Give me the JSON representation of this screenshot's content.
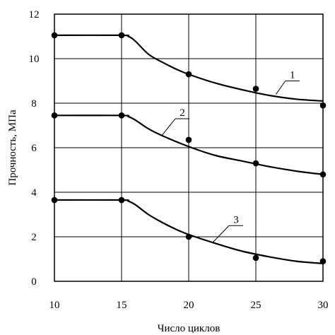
{
  "chart_data": {
    "type": "line",
    "title": "",
    "xlabel": "Число циклов",
    "ylabel": "Прочность, МПа",
    "xlim": [
      10,
      30
    ],
    "ylim": [
      0,
      12
    ],
    "x_ticks": [
      "10",
      "15",
      "20",
      "25",
      "30"
    ],
    "y_ticks": [
      "0",
      "2",
      "4",
      "6",
      "8",
      "10",
      "12"
    ],
    "grid": true,
    "series": [
      {
        "name": "1",
        "points": [
          {
            "x": 10,
            "y": 11.05
          },
          {
            "x": 15,
            "y": 11.05
          },
          {
            "x": 20,
            "y": 9.3
          },
          {
            "x": 25,
            "y": 8.65
          },
          {
            "x": 30,
            "y": 7.9
          }
        ],
        "curve": [
          {
            "x": 10,
            "y": 11.05
          },
          {
            "x": 15,
            "y": 11.05
          },
          {
            "x": 15.5,
            "y": 11.0
          },
          {
            "x": 16,
            "y": 10.8
          },
          {
            "x": 17,
            "y": 10.2
          },
          {
            "x": 18,
            "y": 9.85
          },
          {
            "x": 19,
            "y": 9.55
          },
          {
            "x": 20,
            "y": 9.3
          },
          {
            "x": 22,
            "y": 8.9
          },
          {
            "x": 24,
            "y": 8.6
          },
          {
            "x": 26,
            "y": 8.35
          },
          {
            "x": 28,
            "y": 8.18
          },
          {
            "x": 30,
            "y": 8.1
          }
        ]
      },
      {
        "name": "2",
        "points": [
          {
            "x": 10,
            "y": 7.45
          },
          {
            "x": 15,
            "y": 7.45
          },
          {
            "x": 20,
            "y": 6.35
          },
          {
            "x": 25,
            "y": 5.3
          },
          {
            "x": 30,
            "y": 4.8
          }
        ],
        "curve": [
          {
            "x": 10,
            "y": 7.45
          },
          {
            "x": 15,
            "y": 7.45
          },
          {
            "x": 15.5,
            "y": 7.4
          },
          {
            "x": 16,
            "y": 7.25
          },
          {
            "x": 17,
            "y": 6.85
          },
          {
            "x": 18,
            "y": 6.55
          },
          {
            "x": 20,
            "y": 6.05
          },
          {
            "x": 22,
            "y": 5.65
          },
          {
            "x": 24,
            "y": 5.4
          },
          {
            "x": 26,
            "y": 5.15
          },
          {
            "x": 28,
            "y": 4.95
          },
          {
            "x": 30,
            "y": 4.8
          }
        ]
      },
      {
        "name": "3",
        "points": [
          {
            "x": 10,
            "y": 3.65
          },
          {
            "x": 15,
            "y": 3.65
          },
          {
            "x": 20,
            "y": 2.0
          },
          {
            "x": 25,
            "y": 1.05
          },
          {
            "x": 30,
            "y": 0.9
          }
        ],
        "curve": [
          {
            "x": 10,
            "y": 3.65
          },
          {
            "x": 15,
            "y": 3.65
          },
          {
            "x": 15.5,
            "y": 3.6
          },
          {
            "x": 16,
            "y": 3.45
          },
          {
            "x": 17,
            "y": 3.0
          },
          {
            "x": 18,
            "y": 2.65
          },
          {
            "x": 19,
            "y": 2.35
          },
          {
            "x": 20,
            "y": 2.1
          },
          {
            "x": 22,
            "y": 1.7
          },
          {
            "x": 24,
            "y": 1.35
          },
          {
            "x": 26,
            "y": 1.1
          },
          {
            "x": 28,
            "y": 0.9
          },
          {
            "x": 30,
            "y": 0.8
          }
        ]
      }
    ],
    "annotations": [
      {
        "text": "1",
        "series": "1",
        "leader_from": {
          "x": 26.5,
          "y": 8.4
        },
        "label_at": {
          "x": 27.2,
          "y": 9.0
        }
      },
      {
        "text": "2",
        "series": "2",
        "leader_from": {
          "x": 18.0,
          "y": 6.55
        },
        "label_at": {
          "x": 19.0,
          "y": 7.3
        }
      },
      {
        "text": "3",
        "series": "3",
        "leader_from": {
          "x": 21.8,
          "y": 1.75
        },
        "label_at": {
          "x": 23.0,
          "y": 2.5
        }
      }
    ]
  }
}
